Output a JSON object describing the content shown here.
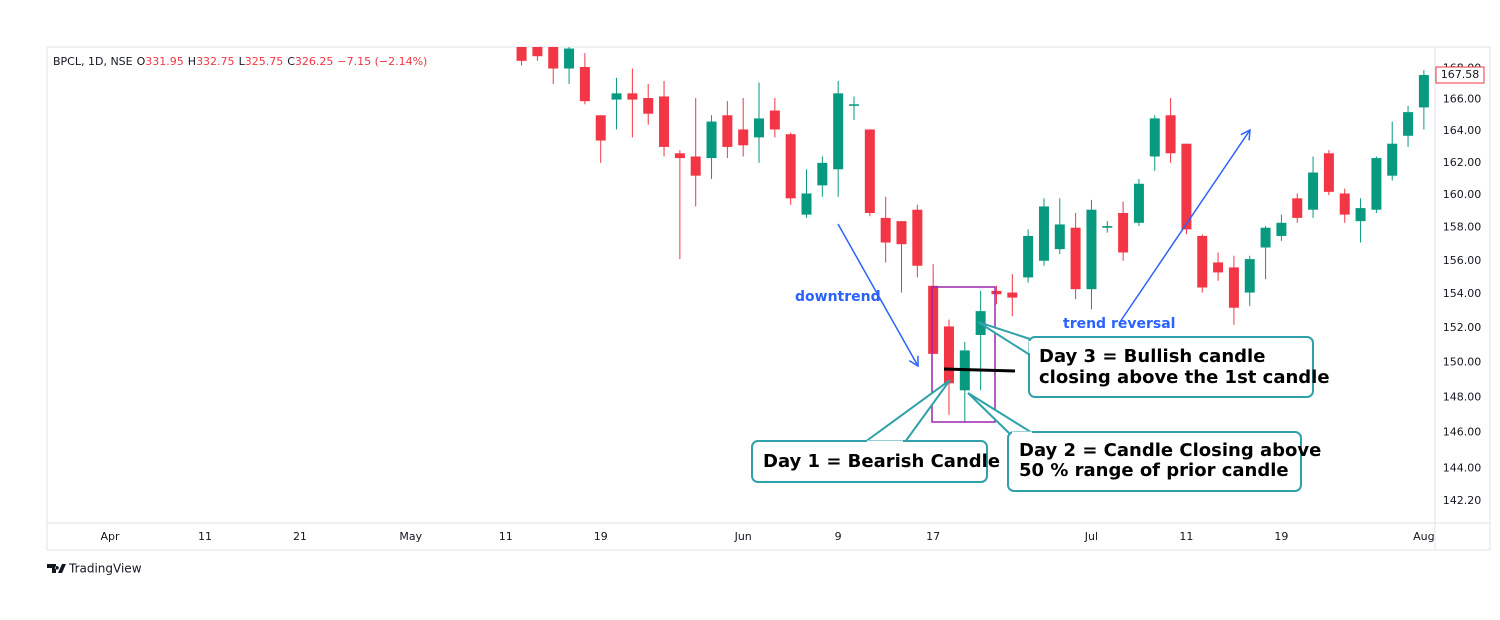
{
  "chart_data": {
    "type": "candlestick",
    "header": {
      "symbol": "BPCL, 1D, NSE",
      "fields": [
        {
          "label": "O",
          "value": "331.95"
        },
        {
          "label": "H",
          "value": "332.75"
        },
        {
          "label": "L",
          "value": "325.75"
        },
        {
          "label": "C",
          "value": "326.25"
        }
      ],
      "change": "−7.15 (−2.14%)"
    },
    "categories": [
      null,
      null,
      null,
      "Apr",
      null,
      null,
      null,
      null,
      null,
      "11",
      null,
      null,
      null,
      null,
      null,
      "21",
      null,
      null,
      null,
      null,
      null,
      null,
      "May",
      null,
      null,
      null,
      null,
      null,
      "11",
      null,
      null,
      null,
      null,
      null,
      "19",
      null,
      null,
      null,
      null,
      null,
      null,
      null,
      null,
      "Jun",
      null,
      null,
      null,
      null,
      null,
      "9",
      null,
      null,
      null,
      null,
      null,
      "17",
      null,
      null,
      null,
      null,
      null,
      null,
      null,
      null,
      null,
      "Jul",
      null,
      null,
      null,
      null,
      null,
      "11",
      null,
      null,
      null,
      null,
      null,
      "19",
      null,
      null,
      null,
      null,
      null,
      null,
      null,
      null,
      "Aug"
    ],
    "open": [
      null,
      null,
      null,
      null,
      null,
      null,
      null,
      null,
      null,
      null,
      null,
      null,
      null,
      null,
      null,
      null,
      null,
      null,
      null,
      null,
      null,
      null,
      null,
      null,
      null,
      null,
      null,
      null,
      null,
      169.8,
      169.5,
      169.4,
      168.0,
      168.1,
      165.0,
      166.0,
      166.4,
      166.1,
      166.2,
      162.6,
      162.4,
      162.3,
      165.0,
      164.1,
      163.6,
      165.3,
      163.8,
      158.8,
      160.6,
      161.6,
      165.6,
      164.1,
      158.6,
      158.4,
      159.1,
      154.5,
      152.1,
      148.4,
      151.6,
      154.2,
      154.1,
      155.0,
      156.0,
      156.7,
      158.0,
      154.3,
      158.0,
      158.9,
      158.3,
      162.4,
      165.0,
      163.2,
      157.5,
      155.9,
      155.6,
      154.1,
      156.8,
      157.5,
      159.8,
      159.1,
      162.6,
      160.1,
      158.4,
      159.1,
      161.2,
      163.7,
      165.5
    ],
    "high": [
      null,
      null,
      null,
      null,
      null,
      null,
      null,
      null,
      null,
      null,
      null,
      null,
      null,
      null,
      null,
      null,
      null,
      null,
      null,
      null,
      null,
      null,
      null,
      null,
      null,
      null,
      null,
      null,
      null,
      170.5,
      170.0,
      169.8,
      170.0,
      169.0,
      165.0,
      167.4,
      168.0,
      167.0,
      167.2,
      162.8,
      166.1,
      165.0,
      165.9,
      166.1,
      167.1,
      166.1,
      163.9,
      161.6,
      162.4,
      167.2,
      166.2,
      164.1,
      159.9,
      158.4,
      159.4,
      155.8,
      152.5,
      151.2,
      154.2,
      154.5,
      155.2,
      157.9,
      159.8,
      159.8,
      158.9,
      159.7,
      158.4,
      159.6,
      161.0,
      165.0,
      166.1,
      163.2,
      157.6,
      156.5,
      156.3,
      156.3,
      158.1,
      158.8,
      160.1,
      162.4,
      162.8,
      160.4,
      159.8,
      162.4,
      164.6,
      165.6,
      167.9
    ],
    "low": [
      null,
      null,
      null,
      null,
      null,
      null,
      null,
      null,
      null,
      null,
      null,
      null,
      null,
      null,
      null,
      null,
      null,
      null,
      null,
      null,
      null,
      null,
      null,
      null,
      null,
      null,
      null,
      null,
      null,
      168.2,
      168.5,
      167.0,
      167.0,
      165.7,
      162.0,
      164.1,
      163.6,
      164.4,
      162.4,
      156.1,
      159.3,
      161.0,
      162.3,
      162.4,
      162.0,
      163.6,
      159.4,
      158.6,
      159.9,
      159.9,
      164.7,
      158.7,
      155.9,
      154.1,
      155.0,
      150.5,
      147.0,
      146.6,
      148.4,
      153.4,
      152.7,
      154.7,
      155.7,
      156.4,
      153.7,
      153.1,
      157.7,
      156.0,
      158.1,
      161.5,
      162.0,
      157.6,
      154.1,
      154.8,
      152.2,
      153.3,
      154.9,
      157.2,
      158.3,
      158.6,
      160.0,
      158.3,
      157.1,
      158.9,
      160.9,
      163.0,
      164.1
    ],
    "close": [
      null,
      null,
      null,
      null,
      null,
      null,
      null,
      null,
      null,
      null,
      null,
      null,
      null,
      null,
      null,
      null,
      null,
      null,
      null,
      null,
      null,
      null,
      null,
      null,
      null,
      null,
      null,
      null,
      null,
      168.5,
      168.8,
      168.0,
      169.3,
      165.9,
      163.4,
      166.4,
      166.0,
      165.1,
      163.0,
      162.3,
      161.2,
      164.6,
      163.0,
      163.1,
      164.8,
      164.1,
      159.8,
      160.1,
      162.0,
      166.4,
      165.7,
      158.9,
      157.1,
      157.0,
      155.7,
      150.5,
      148.8,
      150.7,
      153.0,
      154.0,
      153.8,
      157.5,
      159.3,
      158.2,
      154.3,
      159.1,
      158.1,
      156.5,
      160.7,
      164.8,
      162.6,
      157.9,
      154.4,
      155.3,
      153.2,
      156.1,
      158.0,
      158.3,
      158.6,
      161.4,
      160.2,
      158.8,
      159.2,
      162.3,
      163.2,
      165.2,
      167.58
    ],
    "up_color": "#089981",
    "down_color": "#f23645",
    "log_scale": true,
    "grid": false,
    "ylim": [
      141.0,
      169.4
    ],
    "yticks": [
      {
        "value": 142.2,
        "label": "142.20"
      },
      {
        "value": 144,
        "label": "144.00"
      },
      {
        "value": 146,
        "label": "146.00"
      },
      {
        "value": 148,
        "label": "148.00"
      },
      {
        "value": 150,
        "label": "150.00"
      },
      {
        "value": 152,
        "label": "152.00"
      },
      {
        "value": 154,
        "label": "154.00"
      },
      {
        "value": 156,
        "label": "156.00"
      },
      {
        "value": 158,
        "label": "158.00"
      },
      {
        "value": 160,
        "label": "160.00"
      },
      {
        "value": 162,
        "label": "162.00"
      },
      {
        "value": 164,
        "label": "164.00"
      },
      {
        "value": 166,
        "label": "166.00"
      },
      {
        "value": 168,
        "label": "168.00"
      }
    ],
    "annotations": {
      "downtrend": "downtrend",
      "reversal": "trend reversal",
      "day1": "Day 1 = Bearish Candle",
      "day2": [
        "Day 2 = Candle Closing above",
        "50 % range of prior candle"
      ],
      "day3": [
        "Day 3 = Bullish candle",
        "closing above the 1st candle"
      ]
    },
    "footer": "TradingView"
  }
}
